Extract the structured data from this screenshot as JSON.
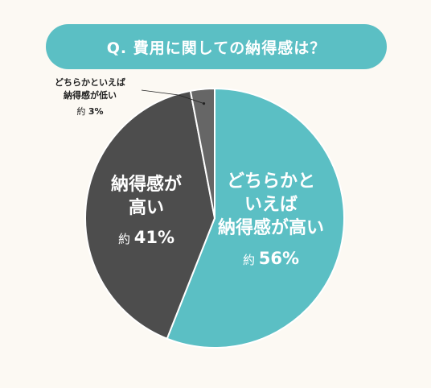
{
  "title": "Q. 費用に関しての納得感は？",
  "colors": {
    "title_bg": "#5bbfc4",
    "high": "#5bbfc4",
    "somewhat_high": "#4d4d4d",
    "somewhat_low": "#666666",
    "divider": "#ffffff",
    "label_text_light": "#ffffff",
    "label_text_dark": "#222222"
  },
  "chart_data": {
    "type": "pie",
    "start_angle_deg": 0,
    "direction": "clockwise",
    "slices": [
      {
        "label_lines": [
          "どちらかと",
          "いえば",
          "納得感が高い"
        ],
        "prefix": "約",
        "value": 56,
        "value_text": "56%",
        "color_key": "high"
      },
      {
        "label_lines": [
          "納得感が",
          "高い"
        ],
        "prefix": "約",
        "value": 41,
        "value_text": "41%",
        "color_key": "somewhat_high"
      },
      {
        "label_lines": [
          "どちらかといえば",
          "納得感が低い"
        ],
        "prefix": "約",
        "value": 3,
        "value_text": "3%",
        "color_key": "somewhat_low"
      }
    ]
  }
}
